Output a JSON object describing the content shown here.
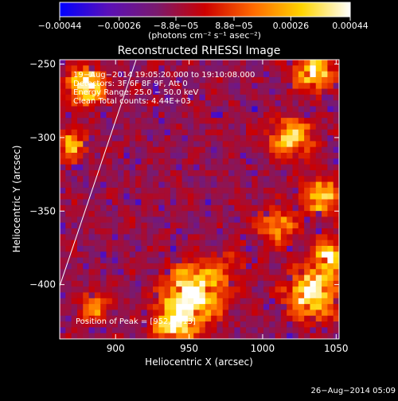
{
  "chart_data": {
    "type": "heatmap",
    "title": "Reconstructed RHESSI Image",
    "xlabel": "Heliocentric X (arcsec)",
    "ylabel": "Heliocentric Y (arcsec)",
    "xlim": [
      862,
      1052
    ],
    "ylim": [
      -437,
      -247
    ],
    "x_ticks": [
      900,
      950,
      1000,
      1050
    ],
    "x_tick_labels": [
      "900",
      "950",
      "1000",
      "1050"
    ],
    "y_ticks": [
      -250,
      -300,
      -350,
      -400
    ],
    "y_tick_labels": [
      "−250",
      "−300",
      "−350",
      "−400"
    ],
    "colorbar": {
      "min": -0.00044,
      "max": 0.00044,
      "ticks": [
        -0.00044,
        -0.00026,
        -8.8e-05,
        8.8e-05,
        0.00026,
        0.00044
      ],
      "tick_labels": [
        "−0.00044",
        "−0.00026",
        "−8.8e−05",
        "8.8e−05",
        "0.00026",
        "0.00044"
      ],
      "units": "(photons cm⁻² s⁻¹ asec⁻²)",
      "colormap": [
        "#0000ff",
        "#5a10b8",
        "#7a1a6e",
        "#cc0000",
        "#ff6a00",
        "#ffd400",
        "#ffffff"
      ]
    },
    "annotations": [
      "19−Aug−2014 19:05:20.000 to 19:10:08.000",
      "Detectors: 3F 6F 8F 9F, Att 0",
      "Energy Range: 25.0 − 50.0 keV",
      "Clean     Total counts: 4.44E+03",
      "Position of Peak = [952,−413]"
    ],
    "peak": [
      952,
      -413
    ],
    "limb_line": [
      [
        862,
        -401
      ],
      [
        914,
        -247
      ]
    ]
  },
  "footer": {
    "timestamp": "26−Aug−2014 05:09"
  },
  "colors": {
    "background": "#000000",
    "text": "#ffffff",
    "limb": "#ffffff"
  }
}
